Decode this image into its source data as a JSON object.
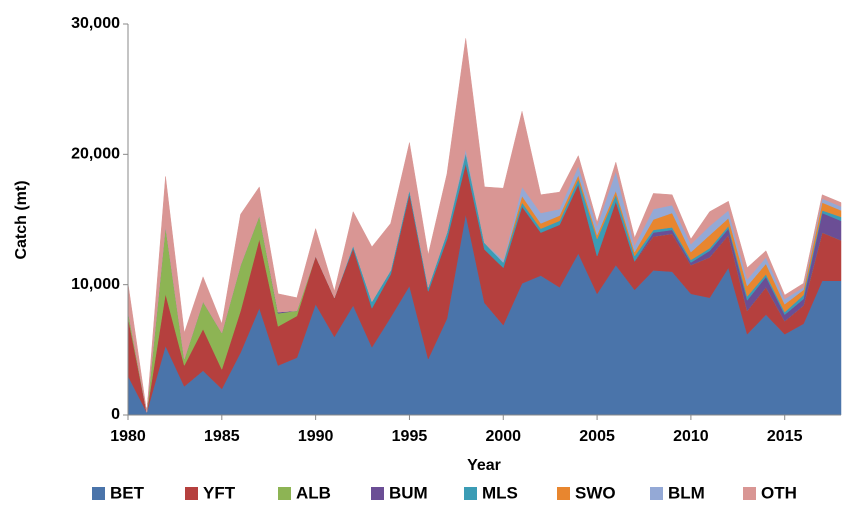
{
  "chart_data": {
    "type": "area",
    "stacked": true,
    "x_label": "Year",
    "y_label": "Catch (mt)",
    "x": [
      1980,
      1981,
      1982,
      1983,
      1984,
      1985,
      1986,
      1987,
      1988,
      1989,
      1990,
      1991,
      1992,
      1993,
      1994,
      1995,
      1996,
      1997,
      1998,
      1999,
      2000,
      2001,
      2002,
      2003,
      2004,
      2005,
      2006,
      2007,
      2008,
      2009,
      2010,
      2011,
      2012,
      2013,
      2014,
      2015,
      2016,
      2017,
      2018
    ],
    "xlim": [
      1980,
      2018
    ],
    "xticks": [
      1980,
      1985,
      1990,
      1995,
      2000,
      2005,
      2010,
      2015
    ],
    "ylim": [
      0,
      30000
    ],
    "yticks": [
      0,
      {
        "value": 10000,
        "label": "10,000"
      },
      {
        "value": 20000,
        "label": "20,000"
      },
      {
        "value": 30000,
        "label": "30,000"
      }
    ],
    "grid": false,
    "legend": "bottom",
    "series": [
      {
        "name": "BET",
        "color": "#4a74aa",
        "values": [
          3000,
          200,
          5300,
          2200,
          3400,
          2000,
          4800,
          8200,
          3800,
          4400,
          8500,
          6000,
          8400,
          5200,
          7500,
          9900,
          4300,
          7400,
          15400,
          8600,
          6900,
          10100,
          10700,
          9800,
          12400,
          9300,
          11500,
          9600,
          11100,
          11000,
          9300,
          9000,
          11300,
          6200,
          7700,
          6200,
          7000,
          10300,
          10300
        ]
      },
      {
        "name": "YFT",
        "color": "#b5403e",
        "values": [
          4500,
          0,
          4000,
          1600,
          3200,
          1500,
          3200,
          5300,
          3000,
          3200,
          3700,
          3000,
          4400,
          3000,
          3300,
          7100,
          5200,
          6100,
          3900,
          4100,
          4400,
          5900,
          3300,
          4800,
          5300,
          2900,
          4900,
          2200,
          2600,
          2900,
          2200,
          3100,
          2500,
          1800,
          2100,
          1000,
          1400,
          3700,
          3100
        ]
      },
      {
        "name": "ALB",
        "color": "#8db454",
        "values": [
          500,
          0,
          5200,
          500,
          2100,
          2800,
          3500,
          1800,
          1000,
          400,
          0,
          0,
          0,
          0,
          0,
          0,
          0,
          0,
          0,
          0,
          0,
          0,
          0,
          0,
          0,
          0,
          0,
          0,
          0,
          0,
          0,
          0,
          0,
          0,
          0,
          0,
          0,
          0,
          0
        ]
      },
      {
        "name": "BUM",
        "color": "#6b4e95",
        "values": [
          0,
          0,
          0,
          0,
          0,
          0,
          0,
          0,
          100,
          0,
          0,
          0,
          0,
          0,
          0,
          0,
          0,
          0,
          0,
          0,
          0,
          0,
          0,
          0,
          0,
          0,
          0,
          0,
          300,
          300,
          200,
          500,
          500,
          800,
          800,
          500,
          500,
          1500,
          1500
        ]
      },
      {
        "name": "MLS",
        "color": "#3b9cb5",
        "values": [
          0,
          0,
          0,
          0,
          0,
          0,
          0,
          0,
          0,
          0,
          0,
          0,
          200,
          500,
          300,
          300,
          300,
          500,
          800,
          500,
          400,
          300,
          300,
          300,
          400,
          1300,
          500,
          400,
          200,
          200,
          200,
          200,
          200,
          300,
          200,
          200,
          300,
          200,
          300
        ]
      },
      {
        "name": "SWO",
        "color": "#e8862f",
        "values": [
          0,
          0,
          0,
          0,
          0,
          0,
          0,
          0,
          0,
          0,
          0,
          0,
          0,
          0,
          0,
          0,
          0,
          0,
          0,
          0,
          0,
          500,
          400,
          400,
          300,
          300,
          300,
          300,
          800,
          1100,
          600,
          1000,
          600,
          800,
          800,
          600,
          400,
          600,
          500
        ]
      },
      {
        "name": "BLM",
        "color": "#94a9d6",
        "values": [
          0,
          0,
          0,
          0,
          0,
          0,
          0,
          0,
          0,
          0,
          0,
          0,
          0,
          0,
          0,
          0,
          0,
          0,
          300,
          0,
          200,
          700,
          800,
          500,
          700,
          700,
          1500,
          500,
          800,
          600,
          600,
          700,
          600,
          500,
          500,
          400,
          200,
          300,
          300
        ]
      },
      {
        "name": "OTH",
        "color": "#d99694",
        "values": [
          2100,
          0,
          3800,
          2000,
          1900,
          700,
          3900,
          2200,
          1400,
          1000,
          2100,
          500,
          2600,
          4200,
          3600,
          3600,
          2500,
          4500,
          8500,
          4300,
          5500,
          5800,
          1400,
          1300,
          800,
          300,
          700,
          600,
          1200,
          800,
          400,
          1100,
          700,
          900,
          500,
          300,
          300,
          300,
          300
        ]
      }
    ]
  }
}
